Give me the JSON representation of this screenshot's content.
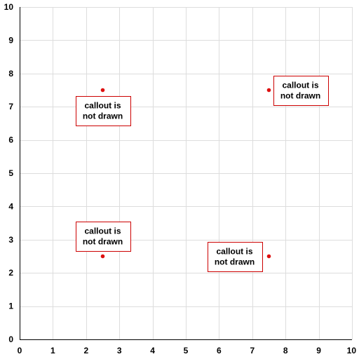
{
  "chart_data": {
    "type": "scatter",
    "title": "",
    "xlabel": "",
    "ylabel": "",
    "xlim": [
      0,
      10
    ],
    "ylim": [
      0,
      10
    ],
    "x_ticks": [
      "0",
      "1",
      "2",
      "3",
      "4",
      "5",
      "6",
      "7",
      "8",
      "9",
      "10"
    ],
    "y_ticks": [
      "0",
      "1",
      "2",
      "3",
      "4",
      "5",
      "6",
      "7",
      "8",
      "9",
      "10"
    ],
    "grid": true,
    "legend": "none",
    "colors": {
      "grid": "#dddddd",
      "axis": "#000000",
      "point": "#dd1111",
      "callout_border": "#cc0000",
      "callout_fill": "#ffffff"
    },
    "points": [
      {
        "x": 2.5,
        "y": 7.5,
        "label": [
          "callout is",
          "not drawn"
        ],
        "placement": "below"
      },
      {
        "x": 7.5,
        "y": 7.5,
        "label": [
          "callout is",
          "not drawn"
        ],
        "placement": "right"
      },
      {
        "x": 2.5,
        "y": 2.5,
        "label": [
          "callout is",
          "not drawn"
        ],
        "placement": "above"
      },
      {
        "x": 7.5,
        "y": 2.5,
        "label": [
          "callout is",
          "not drawn"
        ],
        "placement": "left"
      }
    ]
  }
}
